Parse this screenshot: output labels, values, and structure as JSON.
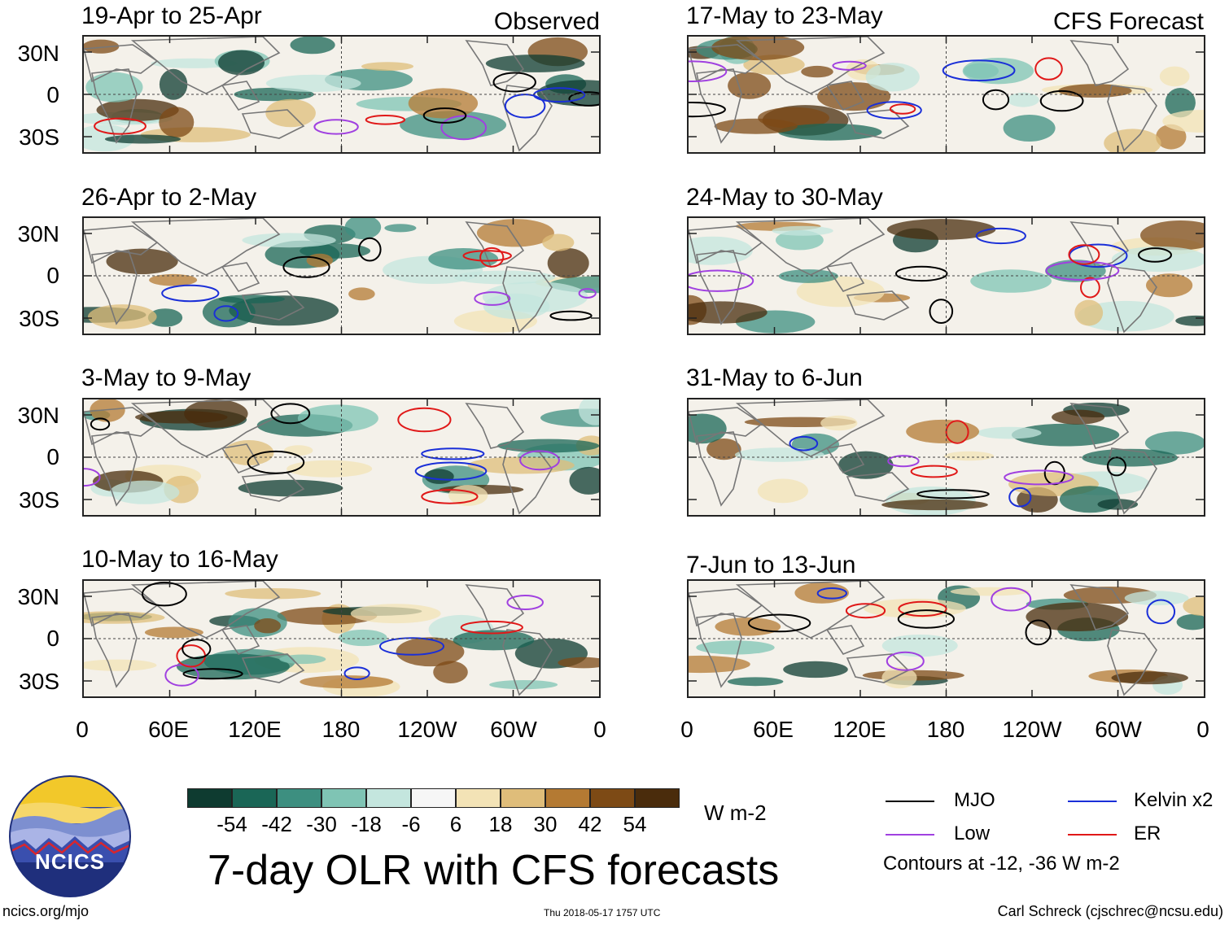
{
  "panel_labels": {
    "observed": "Observed",
    "forecast": "CFS Forecast"
  },
  "lat_ticks": [
    "30N",
    "0",
    "30S"
  ],
  "lon_ticks": [
    "0",
    "60E",
    "120E",
    "180",
    "120W",
    "60W",
    "0"
  ],
  "observed_panels": [
    {
      "title": "19-Apr to 25-Apr"
    },
    {
      "title": "26-Apr to 2-May"
    },
    {
      "title": "3-May to 9-May"
    },
    {
      "title": "10-May to 16-May"
    }
  ],
  "forecast_panels": [
    {
      "title": "17-May to 23-May"
    },
    {
      "title": "24-May to 30-May"
    },
    {
      "title": "31-May to 6-Jun"
    },
    {
      "title": "7-Jun to 13-Jun"
    }
  ],
  "colorbar": {
    "labels": [
      "-54",
      "-42",
      "-30",
      "-18",
      "-6",
      "6",
      "18",
      "30",
      "42",
      "54"
    ],
    "colors": [
      "#0e3b30",
      "#1a6656",
      "#3d8f80",
      "#7fc4b4",
      "#c4e6de",
      "#f6f6f6",
      "#f3e3b6",
      "#dfbd7a",
      "#b47a33",
      "#7d4a15",
      "#4a2c0c"
    ],
    "units": "W m-2"
  },
  "legend": {
    "items": [
      {
        "label": "MJO",
        "color": "#000000"
      },
      {
        "label": "Kelvin x2",
        "color": "#1a2fd8"
      },
      {
        "label": "Low",
        "color": "#a040e0"
      },
      {
        "label": "ER",
        "color": "#e01818"
      }
    ],
    "note": "Contours at -12, -36 W m-2"
  },
  "logo": {
    "text": "NCICS"
  },
  "main_title": "7-day OLR with CFS forecasts",
  "footer": {
    "url": "ncics.org/mjo",
    "timestamp": "Thu 2018-05-17 1757 UTC",
    "author": "Carl Schreck (cjschrec@ncsu.edu)"
  }
}
